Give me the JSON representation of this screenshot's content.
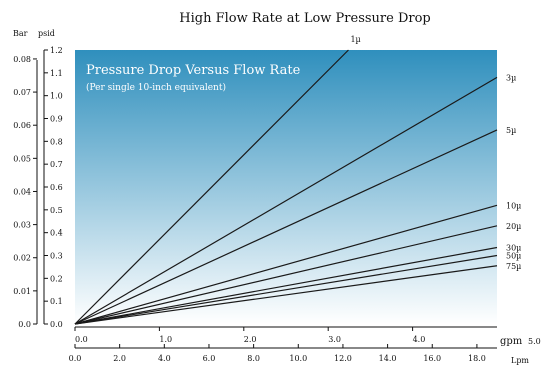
{
  "chart_data": {
    "type": "line",
    "title": "High Flow Rate at Low Pressure Drop",
    "inner_title": "Pressure Drop Versus Flow Rate",
    "inner_subtitle": "(Per single 10-inch equivalent)",
    "y_axes": [
      {
        "label": "Bar",
        "ticks": [
          "0.0",
          "0.01",
          "0.02",
          "0.03",
          "0.04",
          "0.05",
          "0.06",
          "0.07",
          "0.08"
        ],
        "range": [
          0,
          0.0827
        ]
      },
      {
        "label": "psid",
        "ticks": [
          "0.0",
          "0.1",
          "0.2",
          "0.3",
          "0.4",
          "0.5",
          "0.6",
          "0.7",
          "0.8",
          "0.9",
          "1.0",
          "1.1",
          "1.2"
        ],
        "range": [
          0,
          1.2
        ]
      }
    ],
    "x_axes": [
      {
        "label": "gpm",
        "ticks": [
          "0.0",
          "1.0",
          "2.0",
          "3.0",
          "4.0",
          "5.0"
        ],
        "range": [
          0,
          5
        ]
      },
      {
        "label": "Lpm",
        "ticks": [
          "0.0",
          "2.0",
          "4.0",
          "6.0",
          "8.0",
          "10.0",
          "12.0",
          "14.0",
          "16.0",
          "18.0"
        ],
        "range": [
          0,
          18.9
        ]
      }
    ],
    "x_unit": "gpm",
    "y_unit": "psid",
    "series": [
      {
        "name": "1µ",
        "x": [
          0,
          3.24
        ],
        "y": [
          0,
          1.2
        ]
      },
      {
        "name": "3µ",
        "x": [
          0,
          5.0
        ],
        "y": [
          0,
          1.08
        ]
      },
      {
        "name": "5µ",
        "x": [
          0,
          5.0
        ],
        "y": [
          0,
          0.85
        ]
      },
      {
        "name": "10µ",
        "x": [
          0,
          5.0
        ],
        "y": [
          0,
          0.52
        ]
      },
      {
        "name": "20µ",
        "x": [
          0,
          5.0
        ],
        "y": [
          0,
          0.43
        ]
      },
      {
        "name": "30µ",
        "x": [
          0,
          5.0
        ],
        "y": [
          0,
          0.335
        ]
      },
      {
        "name": "50µ",
        "x": [
          0,
          5.0
        ],
        "y": [
          0,
          0.3
        ]
      },
      {
        "name": "75µ",
        "x": [
          0,
          5.0
        ],
        "y": [
          0,
          0.255
        ]
      }
    ],
    "grid": false,
    "legend": "inline-right",
    "colors": {
      "gradient_top": "#2f8fbd",
      "gradient_bottom": "#ffffff",
      "line": "#1a1a1a",
      "text": "#111111"
    }
  }
}
